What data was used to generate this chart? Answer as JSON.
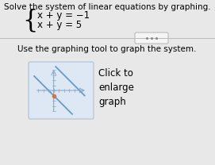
{
  "title_text": "Solve the system of linear equations by graphing.",
  "equation1": "x + y = −1",
  "equation2": "x + y = 5",
  "instruction": "Use the graphing tool to graph the system.",
  "click_text": "Click to\nenlarge\ngraph",
  "line1_color": "#6699cc",
  "line2_color": "#6699cc",
  "axis_color": "#88aacc",
  "dot_color": "#cc7744",
  "bg_color": "#dde8f0",
  "outer_bg": "#e8e8e8",
  "box_bg": "#dde8f4",
  "box_edge": "#aabbcc",
  "title_fontsize": 7.5,
  "eq_fontsize": 8.5,
  "label_fontsize": 7.5,
  "click_fontsize": 8.5,
  "brace_fontsize": 22
}
